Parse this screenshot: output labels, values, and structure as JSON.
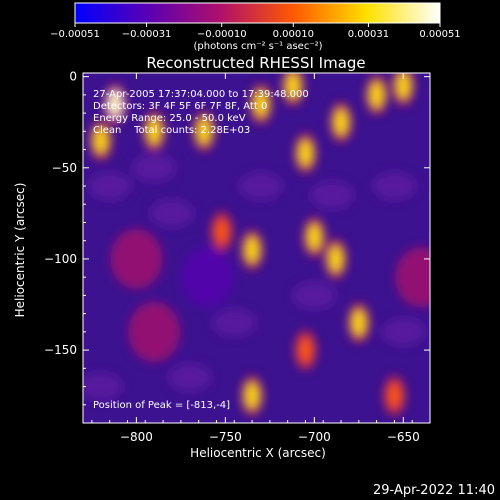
{
  "chart_data": {
    "type": "heatmap",
    "title": "Reconstructed RHESSI Image",
    "xlabel": "Heliocentric X (arcsec)",
    "ylabel": "Heliocentric Y (arcsec)",
    "xlim": [
      -830,
      -635
    ],
    "ylim": [
      -190,
      2
    ],
    "x_ticks": [
      -800,
      -750,
      -700,
      -650
    ],
    "x_tick_labels": [
      "−800",
      "−750",
      "−700",
      "−650"
    ],
    "y_ticks": [
      0,
      -50,
      -100,
      -150
    ],
    "y_tick_labels": [
      "0",
      "−50",
      "−100",
      "−150"
    ],
    "colorbar": {
      "min": -0.00051,
      "max": 0.00051,
      "ticks": [
        -0.00051,
        -0.00031,
        -0.0001,
        0.0001,
        0.00031,
        0.00051
      ],
      "tick_labels": [
        "−0.00051",
        "−0.00031",
        "−0.00010",
        "0.00010",
        "0.00031",
        "0.00051"
      ],
      "label": "(photons cm⁻² s⁻¹ asec⁻²)",
      "colors": [
        "#0000ff",
        "#5a00b4",
        "#b0106a",
        "#ff5a00",
        "#ffe000",
        "#ffffff"
      ]
    },
    "annotations": [
      "27-Apr-2005 17:37:04.000 to 17:39:48.000",
      "Detectors: 3F 4F 5F 6F 7F 8F, Att 0",
      "Energy Range: 25.0 - 50.0 keV",
      "Clean    Total counts: 2.28E+03"
    ],
    "peak_text": "Position of Peak = [-813,-4]",
    "hot_regions": [
      {
        "x": -812,
        "y": -15,
        "intensity": 0.00051
      },
      {
        "x": -820,
        "y": -35,
        "intensity": 0.00031
      },
      {
        "x": -790,
        "y": -30,
        "intensity": 0.00031
      },
      {
        "x": -762,
        "y": -30,
        "intensity": 0.00031
      },
      {
        "x": -730,
        "y": -15,
        "intensity": 0.00031
      },
      {
        "x": -712,
        "y": -5,
        "intensity": 0.00031
      },
      {
        "x": -705,
        "y": -42,
        "intensity": 0.00031
      },
      {
        "x": -685,
        "y": -25,
        "intensity": 0.00031
      },
      {
        "x": -665,
        "y": -10,
        "intensity": 0.00031
      },
      {
        "x": -650,
        "y": -5,
        "intensity": 0.00031
      },
      {
        "x": -752,
        "y": -85,
        "intensity": 0.0001
      },
      {
        "x": -735,
        "y": -95,
        "intensity": 0.00031
      },
      {
        "x": -700,
        "y": -88,
        "intensity": 0.00031
      },
      {
        "x": -688,
        "y": -100,
        "intensity": 0.00031
      },
      {
        "x": -675,
        "y": -135,
        "intensity": 0.00031
      },
      {
        "x": -735,
        "y": -175,
        "intensity": 0.00031
      },
      {
        "x": -705,
        "y": -150,
        "intensity": 0.0001
      },
      {
        "x": -655,
        "y": -175,
        "intensity": 0.0001
      }
    ],
    "cold_regions": [
      {
        "x": -760,
        "y": -110,
        "intensity": -0.00031
      },
      {
        "x": -790,
        "y": -140,
        "intensity": -0.0001
      },
      {
        "x": -640,
        "y": -110,
        "intensity": -0.0001
      },
      {
        "x": -800,
        "y": -100,
        "intensity": -0.0001
      }
    ]
  },
  "footer_timestamp": "29-Apr-2022 11:40"
}
